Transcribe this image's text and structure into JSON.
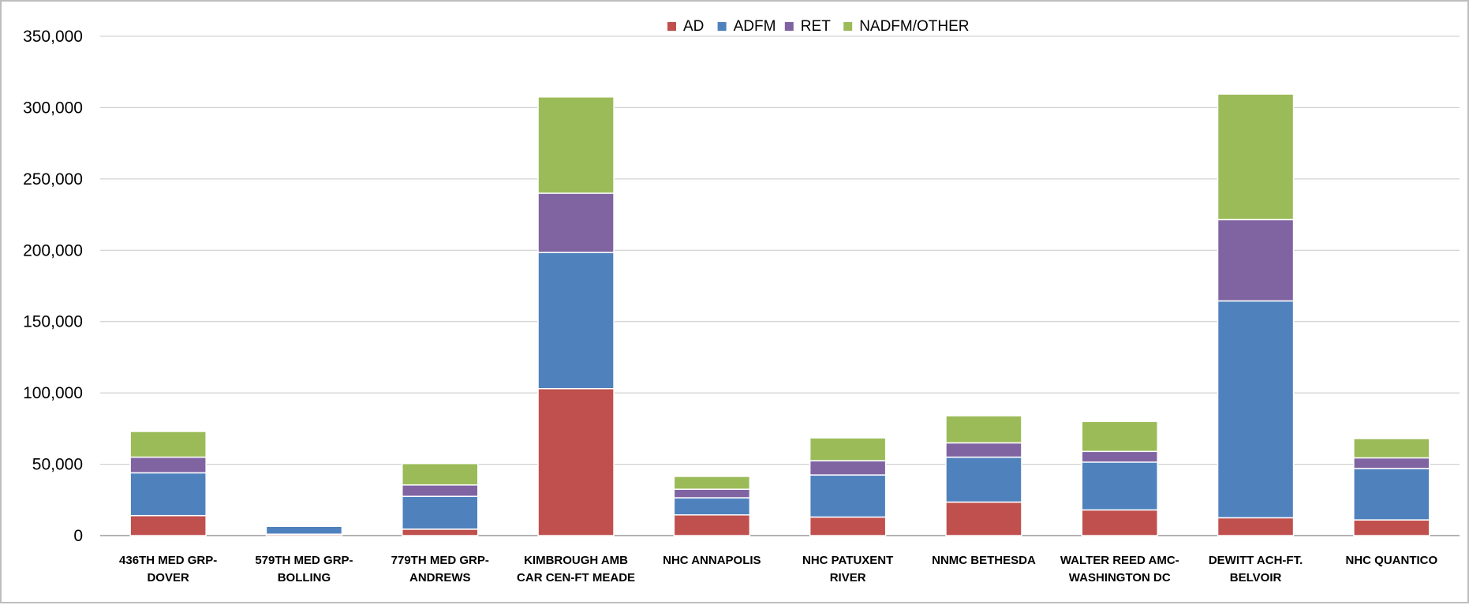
{
  "chart_data": {
    "type": "bar",
    "stacked": true,
    "categories": [
      [
        "436TH MED GRP-",
        "DOVER"
      ],
      [
        "579TH MED GRP-",
        "BOLLING"
      ],
      [
        "779TH MED GRP-",
        "ANDREWS"
      ],
      [
        "KIMBROUGH AMB",
        "CAR CEN-FT MEADE"
      ],
      [
        "NHC ANNAPOLIS"
      ],
      [
        "NHC PATUXENT",
        "RIVER"
      ],
      [
        "NNMC BETHESDA"
      ],
      [
        "WALTER REED AMC-",
        "WASHINGTON DC"
      ],
      [
        "DEWITT ACH-FT.",
        "BELVOIR"
      ],
      [
        "NHC QUANTICO"
      ]
    ],
    "series": [
      {
        "name": "AD",
        "color": "#C0504D",
        "values": [
          14000,
          1000,
          4500,
          103000,
          14500,
          13000,
          23500,
          18000,
          12500,
          11000
        ]
      },
      {
        "name": "ADFM",
        "color": "#4F81BD",
        "values": [
          30000,
          5500,
          23000,
          95500,
          12000,
          29500,
          31500,
          33500,
          152000,
          36000
        ]
      },
      {
        "name": "RET",
        "color": "#8064A2",
        "values": [
          11000,
          500,
          8000,
          41500,
          6000,
          10000,
          10000,
          7500,
          57000,
          7500
        ]
      },
      {
        "name": "NADFM/OTHER",
        "color": "#9BBB59",
        "values": [
          18000,
          0,
          15000,
          67500,
          9000,
          16000,
          19000,
          21000,
          88000,
          13500
        ]
      }
    ],
    "y_ticks": [
      "0",
      "50,000",
      "100,000",
      "150,000",
      "200,000",
      "250,000",
      "300,000",
      "350,000"
    ],
    "ylim": [
      0,
      350000
    ],
    "grid": true,
    "legend_position": "top-center",
    "title": "",
    "xlabel": "",
    "ylabel": ""
  }
}
